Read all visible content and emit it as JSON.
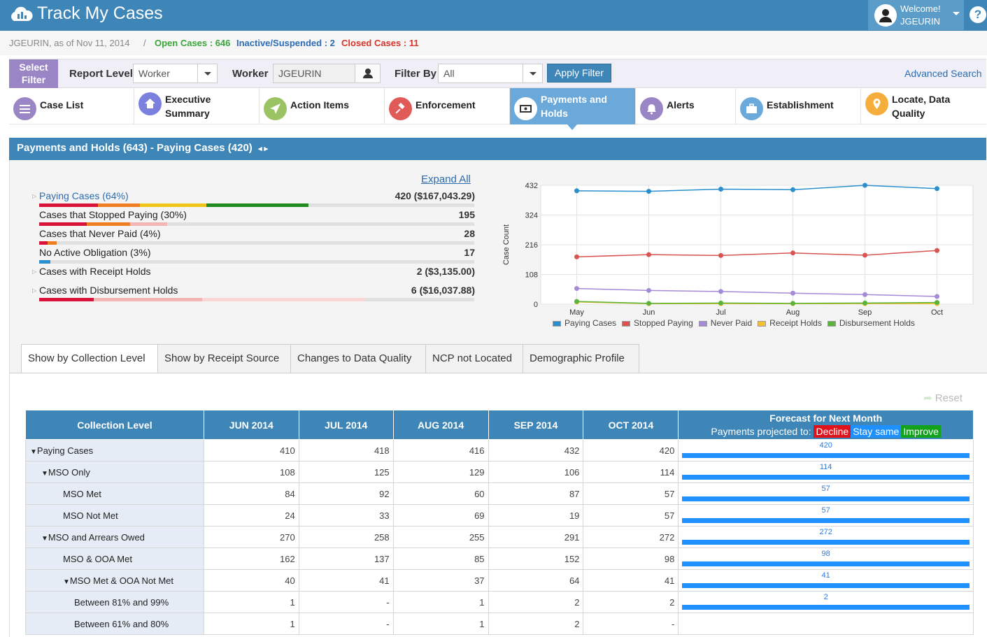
{
  "app": {
    "title": "Track My Cases"
  },
  "user": {
    "welcome": "Welcome!",
    "name": "JGEURIN",
    "help": "?"
  },
  "status": {
    "as_of": "JGEURIN, as of Nov 11, 2014",
    "sep": "/",
    "open": "Open Cases : 646",
    "inactive": "Inactive/Suspended : 2",
    "closed": "Closed Cases : 11"
  },
  "filter": {
    "select_filter": "Select Filter",
    "report_level_label": "Report Level",
    "report_level_value": "Worker",
    "worker_label": "Worker",
    "worker_value": "JGEURIN",
    "filter_by_label": "Filter By",
    "filter_by_value": "All",
    "apply": "Apply Filter",
    "advanced": "Advanced Search"
  },
  "nav": [
    {
      "label": "Case List",
      "color": "#9a86c5"
    },
    {
      "label": "Executive Summary",
      "color": "#7b7fdd"
    },
    {
      "label": "Action Items",
      "color": "#9ac464"
    },
    {
      "label": "Enforcement",
      "color": "#e05a57"
    },
    {
      "label": "Payments and Holds",
      "color": "#ffffff"
    },
    {
      "label": "Alerts",
      "color": "#9a86c5"
    },
    {
      "label": "Establishment",
      "color": "#6ba9da"
    },
    {
      "label": "Locate, Data Quality",
      "color": "#f5ae3b"
    }
  ],
  "section": {
    "title": "Payments and Holds (643)  - Paying Cases (420)",
    "pager": "◂ ▸"
  },
  "summary": {
    "expand_all": "Expand All",
    "rows": [
      {
        "label": "Paying Cases (64%)",
        "value": "420 ($167,043.29)"
      },
      {
        "label": "Cases that Stopped Paying (30%)",
        "value": "195"
      },
      {
        "label": "Cases that Never Paid (4%)",
        "value": "28"
      },
      {
        "label": "No Active Obligation (3%)",
        "value": "17"
      },
      {
        "label": "Cases with Receipt Holds",
        "value": "2 ($3,135.00)"
      },
      {
        "label": "Cases with Disbursement Holds",
        "value": "6 ($16,037.88)"
      }
    ]
  },
  "chart_data": {
    "type": "line",
    "x": [
      "May",
      "Jun",
      "Jul",
      "Aug",
      "Sep",
      "Oct"
    ],
    "ylabel": "Case Count",
    "yticks": [
      0,
      108,
      216,
      324,
      432
    ],
    "ylim": [
      0,
      432
    ],
    "grid": true,
    "legend_position": "bottom",
    "series": [
      {
        "name": "Paying Cases",
        "color": "#2a8fcc",
        "values": [
          412,
          410,
          418,
          416,
          432,
          420
        ]
      },
      {
        "name": "Stopped Paying",
        "color": "#d9534f",
        "values": [
          172,
          180,
          177,
          186,
          178,
          195
        ]
      },
      {
        "name": "Never Paid",
        "color": "#a58ad6",
        "values": [
          57,
          50,
          46,
          40,
          35,
          28
        ]
      },
      {
        "name": "Receipt Holds",
        "color": "#f2c230",
        "values": [
          8,
          2,
          2,
          2,
          2,
          2
        ]
      },
      {
        "name": "Disbursement Holds",
        "color": "#5ab43c",
        "values": [
          10,
          3,
          4,
          3,
          4,
          6
        ]
      }
    ]
  },
  "tabs": [
    "Show by Collection Level",
    "Show by Receipt Source",
    "Changes to Data Quality",
    "NCP not Located",
    "Demographic Profile"
  ],
  "reset": "Reset",
  "table": {
    "col_level": "Collection Level",
    "months": [
      "JUN 2014",
      "JUL 2014",
      "AUG 2014",
      "SEP 2014",
      "OCT 2014"
    ],
    "forecast_title": "Forecast for Next Month",
    "forecast_sub": "Payments projected to:",
    "decline": "Decline",
    "same": "Stay same",
    "improve": "Improve",
    "rows": [
      {
        "label": "Paying Cases",
        "indent": 0,
        "expander": "▼",
        "values": [
          "410",
          "418",
          "416",
          "432",
          "420"
        ],
        "forecast": "420"
      },
      {
        "label": "MSO Only",
        "indent": 1,
        "expander": "▼",
        "values": [
          "108",
          "125",
          "129",
          "106",
          "114"
        ],
        "forecast": "114"
      },
      {
        "label": "MSO Met",
        "indent": 2,
        "expander": "",
        "values": [
          "84",
          "92",
          "60",
          "87",
          "57"
        ],
        "forecast": "57"
      },
      {
        "label": "MSO Not Met",
        "indent": 2,
        "expander": "",
        "values": [
          "24",
          "33",
          "69",
          "19",
          "57"
        ],
        "forecast": "57"
      },
      {
        "label": "MSO and Arrears Owed",
        "indent": 1,
        "expander": "▼",
        "values": [
          "270",
          "258",
          "255",
          "291",
          "272"
        ],
        "forecast": "272"
      },
      {
        "label": "MSO & OOA Met",
        "indent": 2,
        "expander": "",
        "values": [
          "162",
          "137",
          "85",
          "152",
          "98"
        ],
        "forecast": "98"
      },
      {
        "label": "MSO Met & OOA Not Met",
        "indent": 2,
        "expander": "▼",
        "values": [
          "40",
          "41",
          "37",
          "64",
          "41"
        ],
        "forecast": "41"
      },
      {
        "label": "Between 81% and 99%",
        "indent": 3,
        "expander": "",
        "values": [
          "1",
          "-",
          "1",
          "2",
          "2"
        ],
        "forecast": "2"
      },
      {
        "label": "Between 61% and 80%",
        "indent": 3,
        "expander": "",
        "values": [
          "1",
          "-",
          "1",
          "2",
          "-"
        ],
        "forecast": ""
      }
    ]
  }
}
